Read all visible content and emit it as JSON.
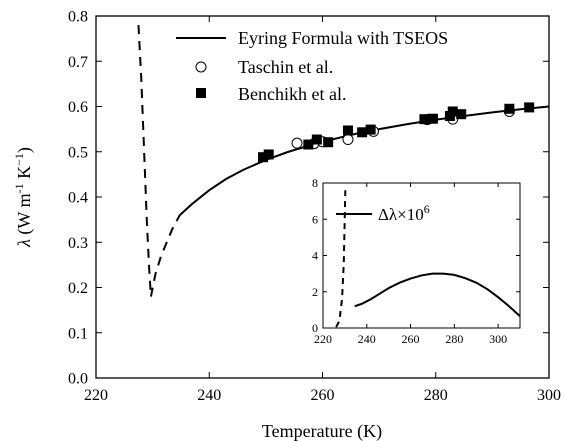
{
  "chart_data": [
    {
      "type": "scatter",
      "title": "",
      "xlabel": "Temperature (K)",
      "ylabel_parts": {
        "lambda": "λ",
        "units_open": " (W m",
        "m_exp": "-1",
        "k": " K",
        "k_exp": "−1",
        "units_close": ")"
      },
      "xlim": [
        220,
        300
      ],
      "ylim": [
        0.0,
        0.8
      ],
      "xticks": [
        220,
        240,
        260,
        280,
        300
      ],
      "yticks": [
        0.0,
        0.1,
        0.2,
        0.3,
        0.4,
        0.5,
        0.6,
        0.7,
        0.8
      ],
      "xtick_labels": [
        "220",
        "240",
        "260",
        "280",
        "300"
      ],
      "ytick_labels": [
        "0.0",
        "0.1",
        "0.2",
        "0.3",
        "0.4",
        "0.5",
        "0.6",
        "0.7",
        "0.8"
      ],
      "grid": false,
      "legend_position": "top-right",
      "series": [
        {
          "name": "Eyring Formula with TSEOS",
          "kind": "line",
          "segments": [
            {
              "style": "dashed",
              "x": [
                227.5,
                228.0,
                228.5,
                229.0,
                229.4,
                229.7
              ],
              "y": [
                0.78,
                0.66,
                0.5,
                0.34,
                0.24,
                0.18
              ]
            },
            {
              "style": "dashed",
              "x": [
                229.7,
                230.5,
                231.5,
                232.5,
                233.5,
                234.8
              ],
              "y": [
                0.18,
                0.23,
                0.27,
                0.3,
                0.33,
                0.36
              ]
            },
            {
              "style": "solid",
              "x": [
                234.8,
                237,
                240,
                243,
                246,
                250,
                254,
                258,
                262,
                266,
                270,
                275,
                280,
                285,
                290,
                295,
                300
              ],
              "y": [
                0.36,
                0.385,
                0.415,
                0.44,
                0.46,
                0.482,
                0.5,
                0.515,
                0.528,
                0.54,
                0.55,
                0.561,
                0.571,
                0.579,
                0.587,
                0.594,
                0.6
              ]
            }
          ]
        },
        {
          "name": "Taschin et al.",
          "kind": "scatter",
          "marker": "open-circle",
          "x": [
            255.5,
            258.5,
            260.0,
            264.5,
            269.0,
            278.5,
            283.0,
            293.0
          ],
          "y": [
            0.519,
            0.518,
            0.522,
            0.527,
            0.545,
            0.571,
            0.572,
            0.589
          ]
        },
        {
          "name": "Benchikh et al.",
          "kind": "scatter",
          "marker": "filled-square",
          "x": [
            249.5,
            250.5,
            257.5,
            259.0,
            261.0,
            264.5,
            267.0,
            268.5,
            278.0,
            279.5,
            282.5,
            283.0,
            284.5,
            293.0,
            296.5
          ],
          "y": [
            0.488,
            0.494,
            0.516,
            0.527,
            0.521,
            0.547,
            0.543,
            0.549,
            0.572,
            0.573,
            0.579,
            0.589,
            0.583,
            0.595,
            0.598
          ]
        }
      ]
    },
    {
      "type": "line",
      "title": "",
      "xlabel": "",
      "ylabel": "",
      "inset": true,
      "xlim": [
        220,
        310
      ],
      "ylim": [
        0,
        8
      ],
      "xticks": [
        220,
        240,
        260,
        280,
        300
      ],
      "yticks": [
        0,
        2,
        4,
        6,
        8
      ],
      "xtick_labels": [
        "220",
        "240",
        "260",
        "280",
        "300"
      ],
      "ytick_labels": [
        "0",
        "2",
        "4",
        "6",
        "8"
      ],
      "grid": false,
      "legend_position": "top-right",
      "legend_parts": {
        "symbol": "Δλ×10",
        "exp": "6"
      },
      "series": [
        {
          "segments": [
            {
              "style": "dashed",
              "x": [
                226.0,
                227.5,
                228.7,
                229.5,
                230.2
              ],
              "y": [
                0.05,
                0.4,
                1.6,
                3.6,
                7.6
              ]
            },
            {
              "style": "solid",
              "x": [
                234.5,
                238,
                242,
                246,
                250,
                255,
                260,
                265,
                270,
                275,
                280,
                285,
                290,
                295,
                300,
                305,
                310
              ],
              "y": [
                1.2,
                1.35,
                1.6,
                1.9,
                2.2,
                2.5,
                2.73,
                2.9,
                3.0,
                3.0,
                2.93,
                2.75,
                2.5,
                2.15,
                1.7,
                1.2,
                0.65
              ]
            }
          ]
        }
      ]
    }
  ]
}
